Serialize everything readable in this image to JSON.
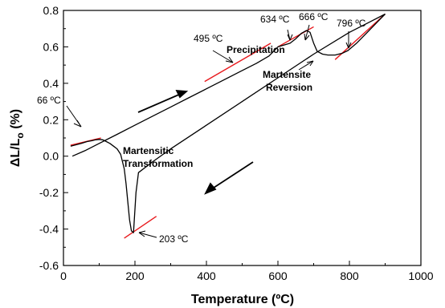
{
  "chart_data": {
    "type": "line",
    "xlabel": "Temperature (ºC)",
    "ylabel_parts": [
      "ΔL/L",
      "o",
      " (%)"
    ],
    "xlim": [
      0,
      1000
    ],
    "ylim": [
      -0.6,
      0.8
    ],
    "x_ticks": [
      0,
      200,
      400,
      600,
      800,
      1000
    ],
    "x_tick_labels": [
      "0",
      "200",
      "400",
      "600",
      "800",
      "1000"
    ],
    "y_ticks": [
      -0.6,
      -0.4,
      -0.2,
      0.0,
      0.2,
      0.4,
      0.6,
      0.8
    ],
    "y_tick_labels": [
      "-0.6",
      "-0.4",
      "-0.2",
      "0.0",
      "0.2",
      "0.4",
      "0.6",
      "0.8"
    ],
    "grid": false,
    "colors": {
      "curve": "#000000",
      "tangent": "#e8191d"
    },
    "series": [
      {
        "role": "heating",
        "x": [
          25,
          60,
          100,
          150,
          200,
          250,
          300,
          350,
          400,
          450,
          495,
          540,
          575,
          600,
          620,
          634,
          650,
          666,
          680,
          690,
          700,
          710,
          725,
          740,
          760,
          780,
          796,
          820,
          850,
          880,
          900
        ],
        "y": [
          0.0,
          0.03,
          0.07,
          0.12,
          0.17,
          0.22,
          0.27,
          0.32,
          0.37,
          0.42,
          0.465,
          0.51,
          0.55,
          0.6,
          0.612,
          0.62,
          0.645,
          0.675,
          0.69,
          0.68,
          0.62,
          0.575,
          0.56,
          0.555,
          0.555,
          0.565,
          0.58,
          0.62,
          0.68,
          0.74,
          0.78
        ]
      },
      {
        "role": "cooling",
        "x": [
          900,
          850,
          800,
          700,
          600,
          500,
          400,
          300,
          250,
          210,
          203,
          196,
          190,
          185,
          180,
          175,
          170,
          160,
          150,
          140,
          130,
          120,
          110,
          100,
          90,
          80,
          66,
          50,
          30,
          20
        ],
        "y": [
          0.78,
          0.73,
          0.68,
          0.56,
          0.43,
          0.3,
          0.17,
          0.04,
          -0.03,
          -0.09,
          -0.2,
          -0.42,
          -0.41,
          -0.35,
          -0.25,
          -0.15,
          -0.07,
          0.01,
          0.04,
          0.055,
          0.07,
          0.08,
          0.09,
          0.092,
          0.09,
          0.085,
          0.08,
          0.07,
          0.06,
          0.055
        ]
      }
    ],
    "tangents": [
      {
        "x": [
          20,
          105
        ],
        "y": [
          0.06,
          0.1
        ]
      },
      {
        "x": [
          170,
          260
        ],
        "y": [
          -0.45,
          -0.33
        ]
      },
      {
        "x": [
          395,
          580
        ],
        "y": [
          0.41,
          0.62
        ]
      },
      {
        "x": [
          600,
          700
        ],
        "y": [
          0.6,
          0.71
        ]
      },
      {
        "x": [
          760,
          900
        ],
        "y": [
          0.53,
          0.78
        ]
      }
    ],
    "annotations": [
      {
        "id": "t66",
        "text": "66 ºC"
      },
      {
        "id": "t203",
        "text": "203 ºC"
      },
      {
        "id": "t495",
        "text": "495 ºC"
      },
      {
        "id": "t634",
        "text": "634 ºC"
      },
      {
        "id": "t666",
        "text": "666 ºC"
      },
      {
        "id": "t796",
        "text": "796 ºC"
      }
    ],
    "region_labels": [
      {
        "id": "precip",
        "lines": [
          "Precipitation"
        ]
      },
      {
        "id": "martensite-reversion",
        "lines": [
          "Martensite",
          "Reversion"
        ]
      },
      {
        "id": "martensitic-transformation",
        "lines": [
          "Martensitic",
          "Transformation"
        ]
      }
    ]
  }
}
